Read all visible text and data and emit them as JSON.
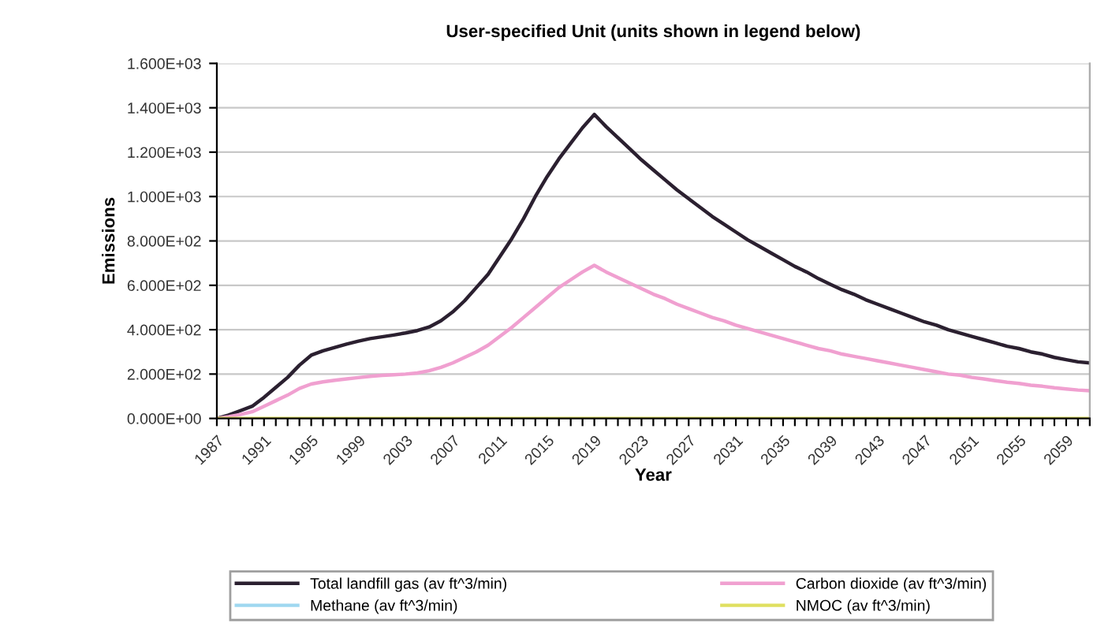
{
  "chart_data": {
    "type": "line",
    "title": "User-specified Unit (units shown in legend below)",
    "xlabel": "Year",
    "ylabel": "Emissions",
    "categories": [
      "1987",
      null,
      null,
      null,
      "1991",
      null,
      null,
      null,
      "1995",
      null,
      null,
      null,
      "1999",
      null,
      null,
      null,
      "2003",
      null,
      null,
      null,
      "2007",
      null,
      null,
      null,
      "2011",
      null,
      null,
      null,
      "2015",
      null,
      null,
      null,
      "2019",
      null,
      null,
      null,
      "2023",
      null,
      null,
      null,
      "2027",
      null,
      null,
      null,
      "2031",
      null,
      null,
      null,
      "2035",
      null,
      null,
      null,
      "2039",
      null,
      null,
      null,
      "2043",
      null,
      null,
      null,
      "2047",
      null,
      null,
      null,
      "2051",
      null,
      null,
      null,
      "2055",
      null,
      null,
      null,
      "2059",
      null,
      null
    ],
    "series": [
      {
        "name": "Total landfill gas (av ft^3/min)",
        "color": "#2b2030",
        "values": [
          0,
          15,
          35,
          55,
          95,
          140,
          185,
          240,
          285,
          305,
          320,
          335,
          348,
          360,
          368,
          376,
          385,
          396,
          412,
          440,
          480,
          530,
          590,
          650,
          730,
          810,
          900,
          1000,
          1090,
          1170,
          1240,
          1310,
          1370,
          1315,
          1265,
          1215,
          1165,
          1120,
          1075,
          1030,
          990,
          950,
          910,
          875,
          840,
          805,
          775,
          745,
          715,
          685,
          660,
          630,
          605,
          580,
          560,
          535,
          515,
          495,
          475,
          455,
          435,
          420,
          400,
          385,
          370,
          355,
          340,
          325,
          315,
          300,
          290,
          275,
          265,
          255,
          250
        ]
      },
      {
        "name": "Methane (av ft^3/min)",
        "color": "#9fd8f0",
        "values": [
          null,
          null,
          null,
          null,
          null,
          null,
          null,
          null,
          null,
          null,
          null,
          null,
          null,
          null,
          null,
          null,
          null,
          null,
          null,
          null,
          null,
          null,
          null,
          null,
          null,
          null,
          null,
          null,
          null,
          null,
          null,
          null,
          null,
          null,
          null,
          null,
          null,
          null,
          null,
          null,
          null,
          null,
          null,
          null,
          null,
          null,
          null,
          null,
          null,
          null,
          null,
          null,
          null,
          null,
          null,
          null,
          null,
          null,
          null,
          null,
          null,
          null,
          null,
          null,
          null,
          null,
          null,
          null,
          null,
          null,
          null,
          null,
          null,
          null,
          null
        ]
      },
      {
        "name": "Carbon dioxide (av ft^3/min)",
        "color": "#f0a0d0",
        "values": [
          0,
          8,
          18,
          30,
          55,
          80,
          105,
          135,
          155,
          165,
          172,
          178,
          184,
          190,
          194,
          197,
          200,
          205,
          215,
          230,
          250,
          275,
          300,
          330,
          370,
          410,
          455,
          500,
          545,
          590,
          625,
          660,
          690,
          660,
          635,
          610,
          585,
          560,
          540,
          515,
          495,
          475,
          455,
          440,
          420,
          405,
          390,
          375,
          360,
          345,
          330,
          315,
          305,
          290,
          280,
          270,
          260,
          250,
          240,
          230,
          220,
          210,
          200,
          195,
          185,
          178,
          170,
          163,
          158,
          150,
          145,
          138,
          133,
          128,
          125
        ]
      },
      {
        "name": "NMOC (av ft^3/min)",
        "color": "#e0e060",
        "values": [
          0,
          0,
          0,
          0,
          0,
          0,
          0,
          0,
          0,
          0,
          0,
          0,
          0,
          0,
          0,
          0,
          0,
          0,
          0,
          0,
          0,
          0,
          0,
          0,
          0,
          0,
          0,
          0,
          0,
          0,
          0,
          0,
          0,
          0,
          0,
          0,
          0,
          0,
          0,
          0,
          0,
          0,
          0,
          0,
          0,
          0,
          0,
          0,
          0,
          0,
          0,
          0,
          0,
          0,
          0,
          0,
          0,
          0,
          0,
          0,
          0,
          0,
          0,
          0,
          0,
          0,
          0,
          0,
          0,
          0,
          0,
          0,
          0,
          0,
          0
        ]
      }
    ],
    "ylim": [
      0,
      1600
    ],
    "yticks": [
      {
        "value": 0,
        "label": "0.000E+00"
      },
      {
        "value": 200,
        "label": "2.000E+02"
      },
      {
        "value": 400,
        "label": "4.000E+02"
      },
      {
        "value": 600,
        "label": "6.000E+02"
      },
      {
        "value": 800,
        "label": "8.000E+02"
      },
      {
        "value": 1000,
        "label": "1.000E+03"
      },
      {
        "value": 1200,
        "label": "1.200E+03"
      },
      {
        "value": 1400,
        "label": "1.400E+03"
      },
      {
        "value": 1600,
        "label": "1.600E+03"
      }
    ],
    "grid": "y",
    "legend": "bottom",
    "marker": "none",
    "line_style": "solid"
  }
}
